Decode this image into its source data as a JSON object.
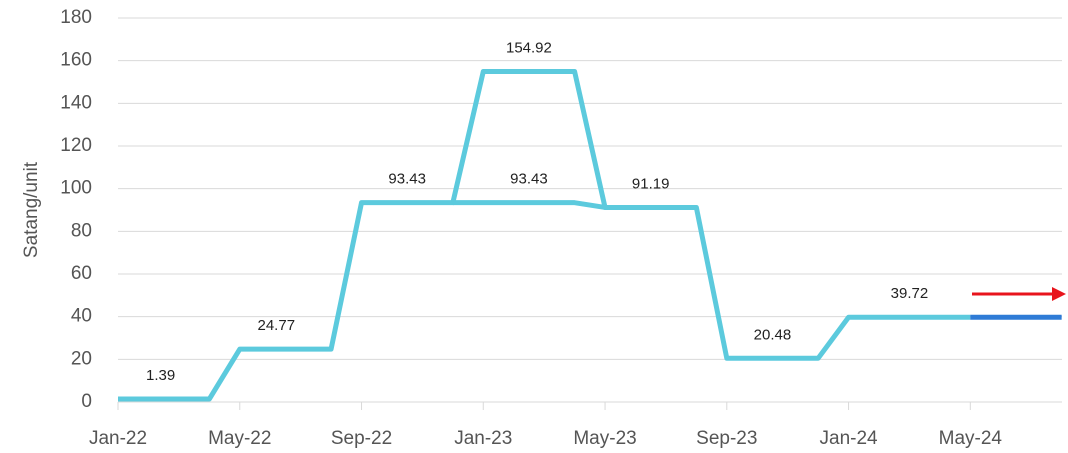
{
  "chart_data": {
    "type": "line",
    "y_label": "Satang/unit",
    "xlim": [
      0,
      31
    ],
    "xticks": [
      {
        "value": 0,
        "label": "Jan-22"
      },
      {
        "value": 4,
        "label": "May-22"
      },
      {
        "value": 8,
        "label": "Sep-22"
      },
      {
        "value": 12,
        "label": "Jan-23"
      },
      {
        "value": 16,
        "label": "May-23"
      },
      {
        "value": 20,
        "label": "Sep-23"
      },
      {
        "value": 24,
        "label": "Jan-24"
      },
      {
        "value": 28,
        "label": "May-24"
      }
    ],
    "ylim": [
      0,
      180
    ],
    "yticks": [
      0,
      20,
      40,
      60,
      80,
      100,
      120,
      140,
      160,
      180
    ],
    "grid": true,
    "series": [
      {
        "color": "#5ccadd",
        "x": [
          0,
          3,
          4,
          7,
          8,
          11,
          12,
          15,
          16,
          19,
          20,
          23,
          24,
          28
        ],
        "values": [
          1.39,
          1.39,
          24.77,
          24.77,
          93.43,
          93.43,
          154.92,
          154.92,
          91.19,
          91.19,
          20.48,
          20.48,
          39.72,
          39.72
        ]
      },
      {
        "color": "#5ccadd",
        "x": [
          11,
          15,
          16
        ],
        "values": [
          93.43,
          93.43,
          91.19
        ]
      },
      {
        "color": "#2e7bd6",
        "x": [
          28,
          31
        ],
        "values": [
          39.72,
          39.72
        ]
      }
    ]
  }
}
